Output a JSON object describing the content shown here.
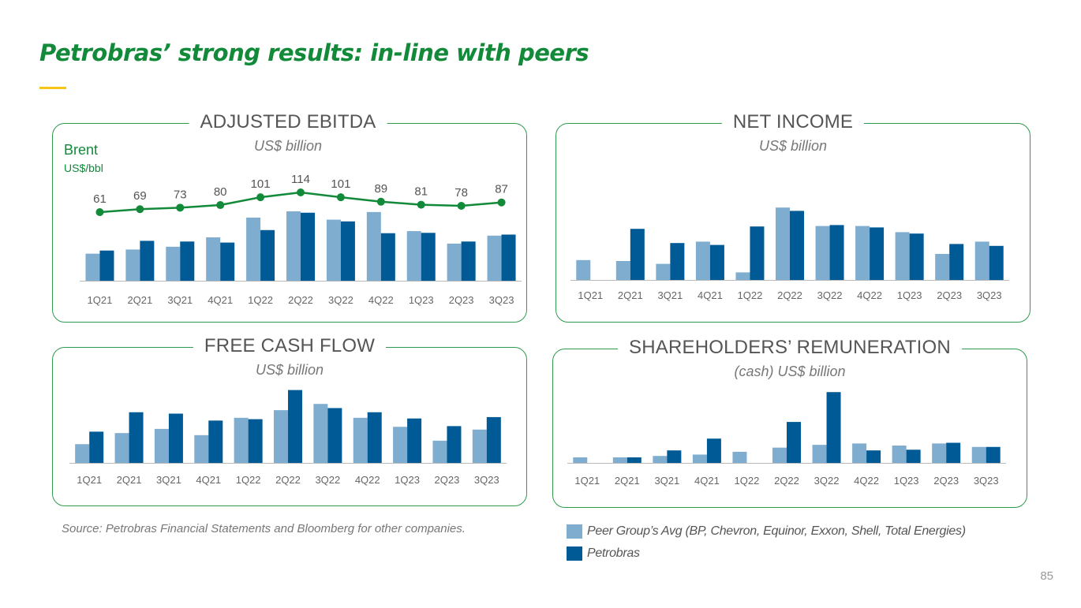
{
  "page": {
    "title": "Petrobras’ strong results: in-line with peers",
    "source": "Source: Petrobras Financial Statements and Bloomberg for other companies.",
    "page_number": "85"
  },
  "legend": {
    "peer": "Peer Group’s Avg (BP, Chevron, Equinor, Exxon, Shell, Total Energies)",
    "petrobras": "Petrobras"
  },
  "colors": {
    "peer": "#7fadd0",
    "petrobras": "#005a96",
    "brent": "#128a3a",
    "frame": "#2e9a4e",
    "accent": "#f5c518"
  },
  "panels": {
    "ebitda": {
      "title": "ADJUSTED EBITDA",
      "subtitle": "US$ billion",
      "brent_label": "Brent",
      "brent_unit": "US$/bbl"
    },
    "net_income": {
      "title": "NET INCOME",
      "subtitle": "US$ billion"
    },
    "fcf": {
      "title": "FREE CASH FLOW",
      "subtitle": "US$ billion"
    },
    "remuneration": {
      "title": "SHAREHOLDERS’ REMUNERATION",
      "subtitle": "(cash) US$ billion"
    }
  },
  "chart_data": [
    {
      "id": "ebitda",
      "type": "bar",
      "title": "ADJUSTED EBITDA",
      "ylabel": "US$ billion",
      "ylim": [
        0,
        20
      ],
      "categories": [
        "1Q21",
        "2Q21",
        "3Q21",
        "4Q21",
        "1Q22",
        "2Q22",
        "3Q22",
        "4Q22",
        "1Q23",
        "2Q23",
        "3Q23"
      ],
      "series": [
        {
          "name": "Peer Group’s Avg",
          "values": [
            7.8,
            9.0,
            9.8,
            12.5,
            18.2,
            20.0,
            17.6,
            19.8,
            14.3,
            10.7,
            13.0
          ]
        },
        {
          "name": "Petrobras",
          "values": [
            8.7,
            11.5,
            11.3,
            11.0,
            14.6,
            19.6,
            17.1,
            13.7,
            13.8,
            11.3,
            13.3
          ]
        }
      ],
      "line_series": {
        "name": "Brent",
        "unit": "US$/bbl",
        "values": [
          61,
          69,
          73,
          80,
          101,
          114,
          101,
          89,
          81,
          78,
          87
        ]
      }
    },
    {
      "id": "net_income",
      "type": "bar",
      "title": "NET INCOME",
      "ylabel": "US$ billion",
      "ylim": [
        0,
        15
      ],
      "categories": [
        "1Q21",
        "2Q21",
        "3Q21",
        "4Q21",
        "1Q22",
        "2Q22",
        "3Q22",
        "4Q22",
        "1Q23",
        "2Q23",
        "3Q23"
      ],
      "series": [
        {
          "name": "Peer Group’s Avg",
          "values": [
            4.2,
            4.0,
            3.4,
            8.1,
            1.6,
            15.3,
            11.4,
            11.4,
            10.1,
            5.5,
            8.1
          ]
        },
        {
          "name": "Petrobras",
          "values": [
            0.0,
            10.8,
            7.8,
            7.4,
            11.3,
            14.6,
            11.6,
            11.1,
            9.8,
            7.6,
            7.2
          ]
        }
      ]
    },
    {
      "id": "fcf",
      "type": "bar",
      "title": "FREE CASH FLOW",
      "ylabel": "US$ billion",
      "ylim": [
        0,
        10
      ],
      "categories": [
        "1Q21",
        "2Q21",
        "3Q21",
        "4Q21",
        "1Q22",
        "2Q22",
        "3Q22",
        "4Q22",
        "1Q23",
        "2Q23",
        "3Q23"
      ],
      "series": [
        {
          "name": "Peer Group’s Avg",
          "values": [
            2.7,
            4.3,
            4.9,
            4.0,
            6.5,
            7.6,
            8.5,
            6.5,
            5.2,
            3.2,
            4.8
          ]
        },
        {
          "name": "Petrobras",
          "values": [
            4.5,
            7.3,
            7.1,
            6.1,
            6.3,
            10.5,
            7.9,
            7.3,
            6.4,
            5.3,
            6.6
          ]
        }
      ]
    },
    {
      "id": "remuneration",
      "type": "bar",
      "title": "SHAREHOLDERS’ REMUNERATION",
      "ylabel": "(cash) US$ billion",
      "ylim": [
        0,
        10
      ],
      "categories": [
        "1Q21",
        "2Q21",
        "3Q21",
        "4Q21",
        "1Q22",
        "2Q22",
        "3Q22",
        "4Q22",
        "1Q23",
        "2Q23",
        "3Q23"
      ],
      "series": [
        {
          "name": "Peer Group’s Avg",
          "values": [
            0.8,
            0.8,
            1.0,
            1.2,
            1.6,
            2.2,
            2.6,
            2.8,
            2.5,
            2.8,
            2.3
          ]
        },
        {
          "name": "Petrobras",
          "values": [
            0.0,
            0.8,
            1.8,
            3.5,
            0.0,
            5.9,
            10.2,
            1.8,
            1.9,
            2.9,
            2.3
          ]
        }
      ]
    }
  ]
}
